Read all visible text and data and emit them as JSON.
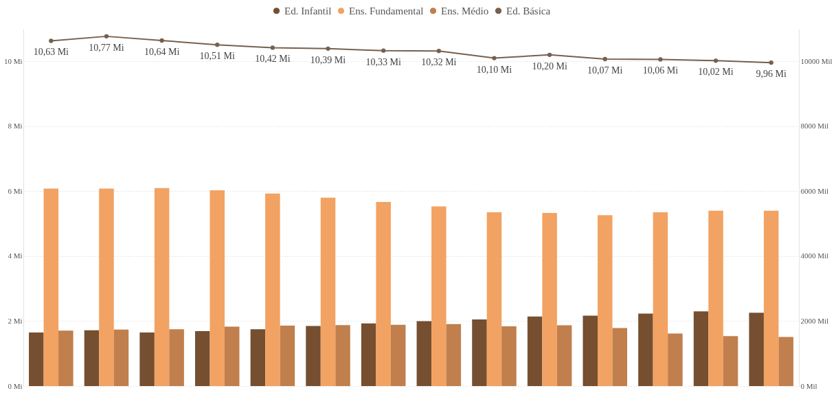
{
  "chart_data": {
    "type": "bar",
    "categories": [
      null,
      null,
      null,
      null,
      null,
      null,
      null,
      null,
      null,
      null,
      null,
      null,
      null,
      null
    ],
    "series": [
      {
        "name": "Ed. Infantil",
        "color": "#754f30",
        "values": [
          1.65,
          1.72,
          1.65,
          1.69,
          1.75,
          1.85,
          1.93,
          2.0,
          2.05,
          2.14,
          2.17,
          2.23,
          2.3,
          2.26
        ]
      },
      {
        "name": "Ens. Fundamental",
        "color": "#f2a262",
        "values": [
          6.08,
          6.08,
          6.1,
          6.03,
          5.93,
          5.8,
          5.67,
          5.53,
          5.35,
          5.33,
          5.26,
          5.35,
          5.4,
          5.4
        ]
      },
      {
        "name": "Ens. Médio",
        "color": "#c07f4c",
        "values": [
          1.71,
          1.74,
          1.75,
          1.83,
          1.86,
          1.88,
          1.89,
          1.91,
          1.84,
          1.87,
          1.79,
          1.62,
          1.54,
          1.51
        ]
      },
      {
        "name": "Ed. Básica",
        "type": "line",
        "color": "#76604f",
        "marker": "circle",
        "values": [
          10.63,
          10.77,
          10.64,
          10.51,
          10.42,
          10.39,
          10.33,
          10.32,
          10.1,
          10.2,
          10.07,
          10.06,
          10.02,
          9.96
        ],
        "value_labels": [
          "10,63 Mi",
          "10,77 Mi",
          "10,64 Mi",
          "10,51 Mi",
          "10,42 Mi",
          "10,39 Mi",
          "10,33 Mi",
          "10,32 Mi",
          "10,10 Mi",
          "10,20 Mi",
          "10,07 Mi",
          "10,06 Mi",
          "10,02 Mi",
          "9,96 Mi"
        ]
      }
    ],
    "ylim": [
      0,
      11
    ],
    "yticks": [
      {
        "value": 0,
        "label": "0 Mi"
      },
      {
        "value": 2,
        "label": "2 Mi"
      },
      {
        "value": 4,
        "label": "4 Mi"
      },
      {
        "value": 6,
        "label": "6 Mi"
      },
      {
        "value": 8,
        "label": "8 Mi"
      },
      {
        "value": 10,
        "label": "10 Mi"
      }
    ],
    "y2lim": [
      0,
      11000
    ],
    "y2ticks": [
      {
        "value": 0,
        "label": "0 Mil"
      },
      {
        "value": 2000,
        "label": "2000 Mil"
      },
      {
        "value": 4000,
        "label": "4000 Mil"
      },
      {
        "value": 6000,
        "label": "6000 Mil"
      },
      {
        "value": 8000,
        "label": "8000 Mil"
      },
      {
        "value": 10000,
        "label": "10000 Mil"
      }
    ],
    "grid": "y",
    "legend": "top"
  }
}
